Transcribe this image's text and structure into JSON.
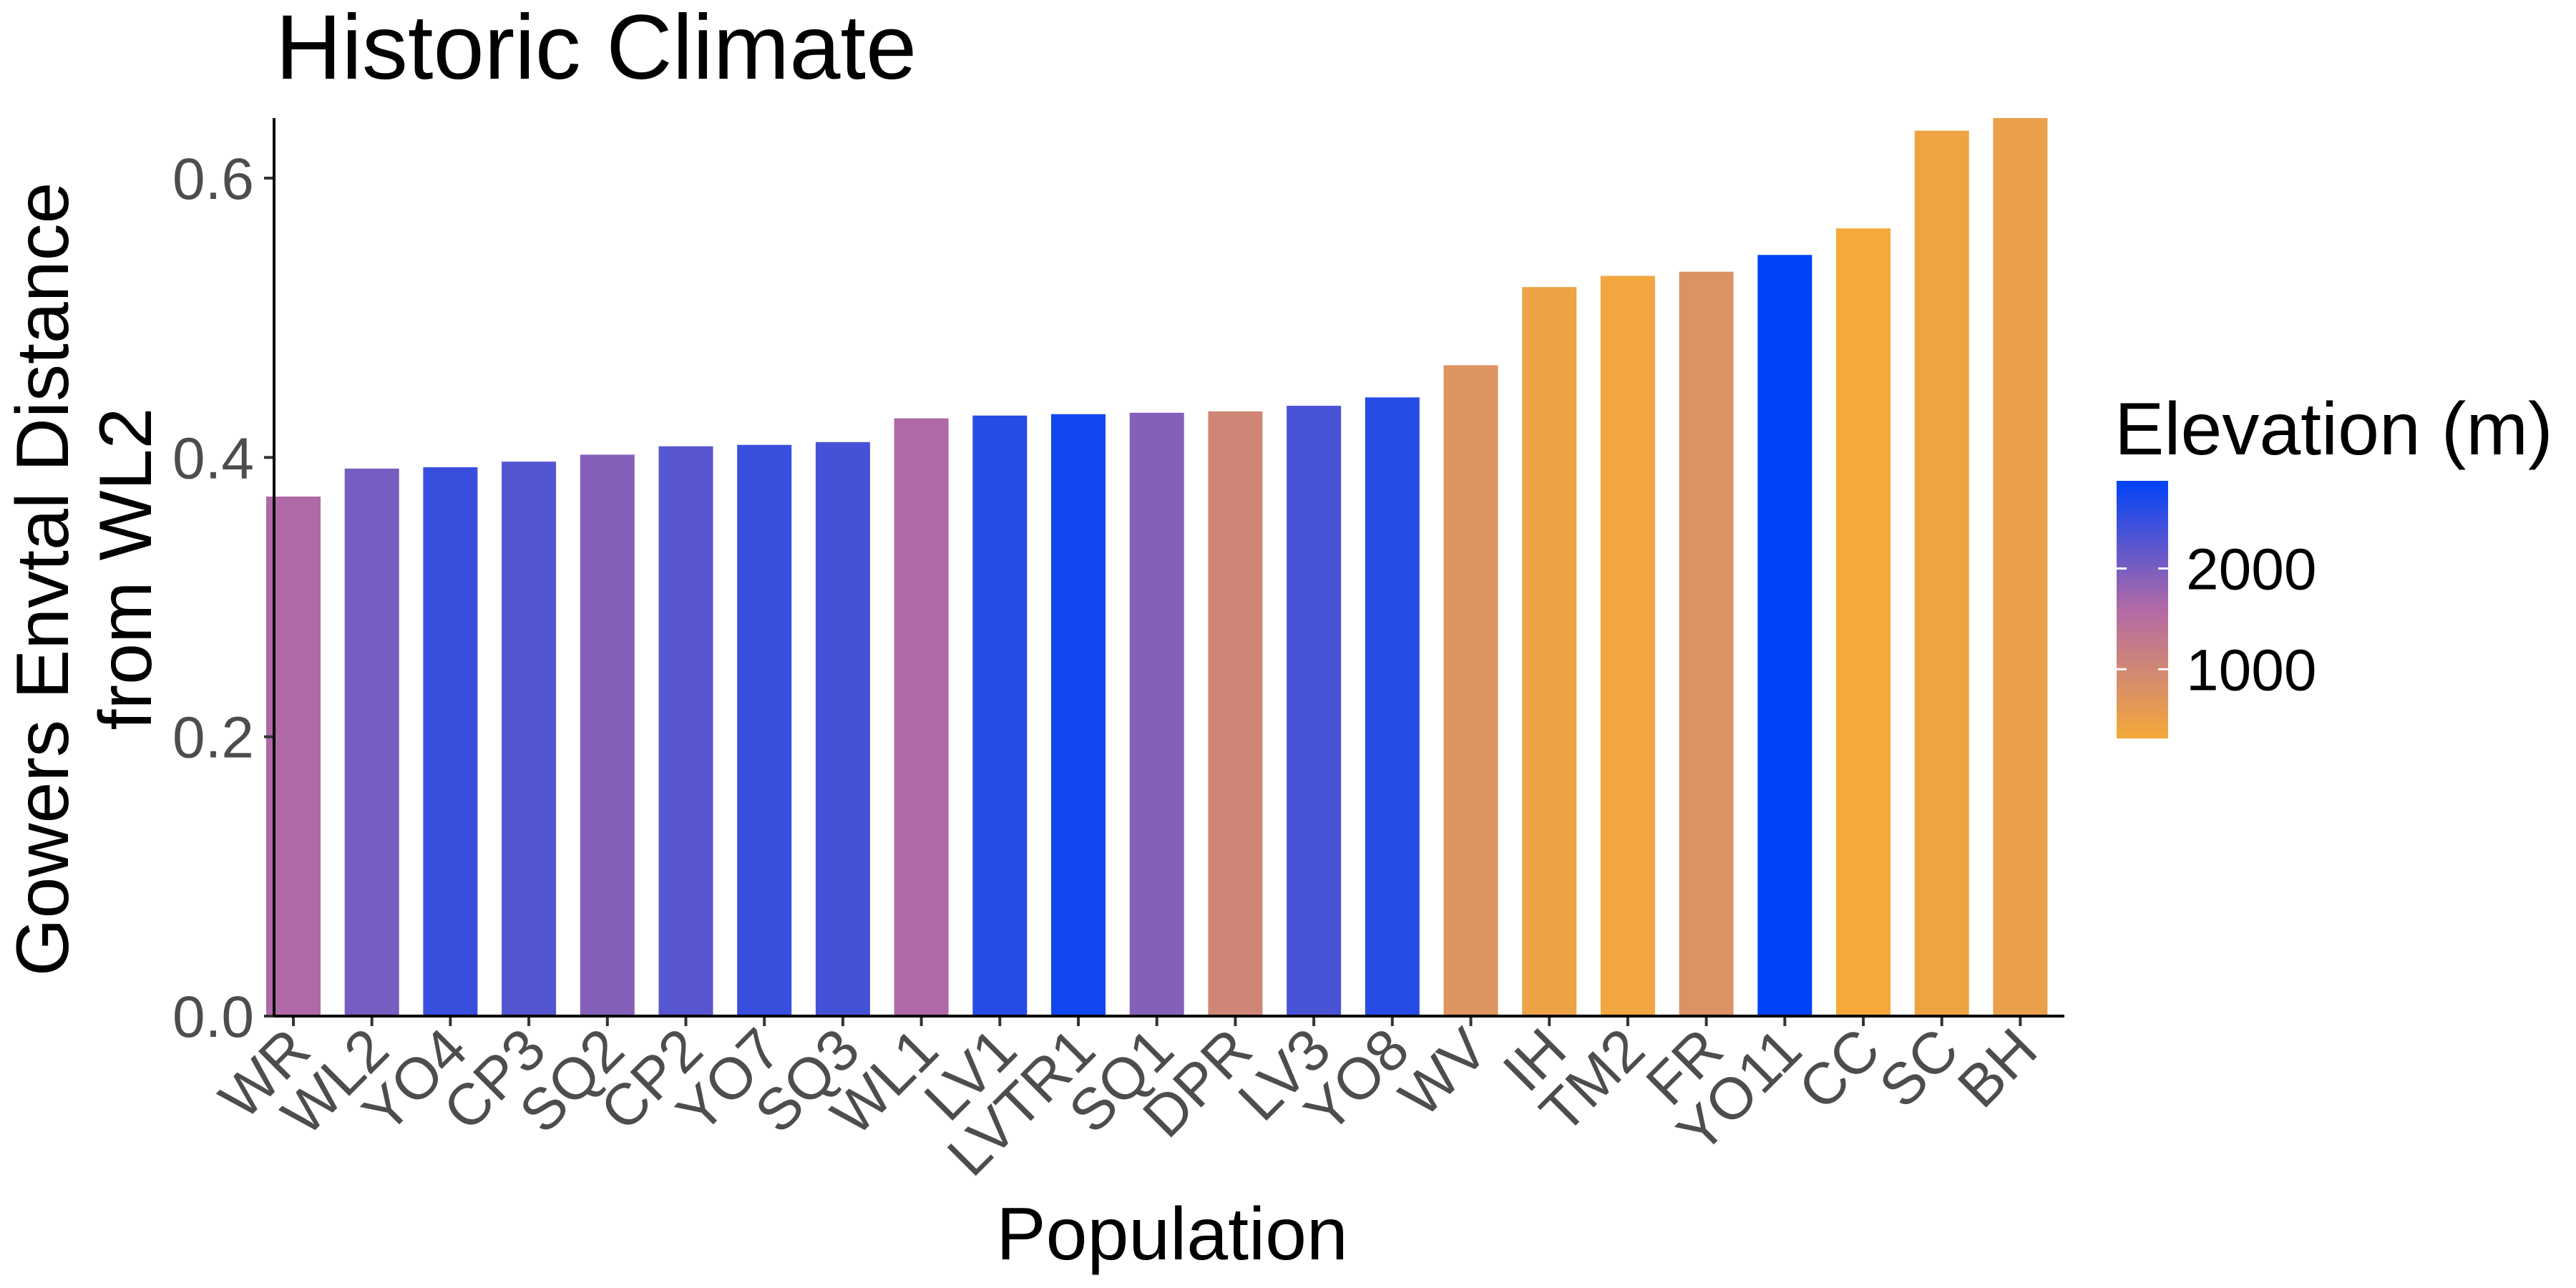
{
  "chart_data": {
    "type": "bar",
    "title": "Historic Climate",
    "xlabel": "Population",
    "ylabel_lines": [
      "Gowers Envtal Distance",
      "from WL2"
    ],
    "ylim": [
      0,
      0.643
    ],
    "yticks": [
      0.0,
      0.2,
      0.4,
      0.6
    ],
    "ytick_labels": [
      "0.0",
      "0.2",
      "0.4",
      "0.6"
    ],
    "grid": false,
    "categories": [
      "WR",
      "WL2",
      "YO4",
      "CP3",
      "SQ2",
      "CP2",
      "YO7",
      "SQ3",
      "WL1",
      "LV1",
      "LVTR1",
      "SQ1",
      "DPR",
      "LV3",
      "YO8",
      "WV",
      "IH",
      "TM2",
      "FR",
      "YO11",
      "CC",
      "SC",
      "BH"
    ],
    "values": [
      0.372,
      0.392,
      0.393,
      0.397,
      0.402,
      0.408,
      0.409,
      0.411,
      0.428,
      0.43,
      0.431,
      0.432,
      0.433,
      0.437,
      0.443,
      0.466,
      0.522,
      0.53,
      0.533,
      0.545,
      0.564,
      0.634,
      0.643
    ],
    "elevation_m": [
      1610,
      2020,
      2470,
      2266,
      1921,
      2244,
      2470,
      2373,
      1614,
      2593,
      2741,
      1921,
      1019,
      2354,
      2591,
      749,
      454,
      379,
      787,
      2870,
      313,
      422,
      511
    ],
    "color_scale": {
      "title": "Elevation (m)",
      "min": 313,
      "max": 2870,
      "low_color": "#f4a93a",
      "mid_color": "#b26aa6",
      "high_color": "#0043f7",
      "ticks": [
        2000,
        1000
      ],
      "tick_labels": [
        "2000",
        "1000"
      ],
      "position": "right"
    }
  }
}
